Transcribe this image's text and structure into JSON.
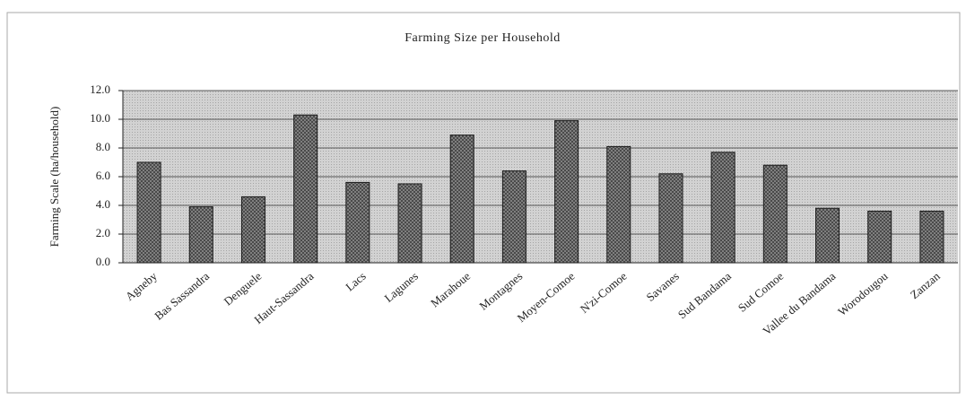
{
  "chart_data": {
    "type": "bar",
    "title": "Farming Size per Household",
    "y_axis_label": "Farming Scale (ha/household)",
    "categories": [
      "Agneby",
      "Bas Sassandra",
      "Denguele",
      "Haut-Sassandra",
      "Lacs",
      "Lagunes",
      "Marahoue",
      "Montagnes",
      "Moyen-Comoe",
      "N'zi-Comoe",
      "Savanes",
      "Sud Bandama",
      "Sud Comoe",
      "Vallee du Bandama",
      "Worodougou",
      "Zanzan"
    ],
    "values": [
      7.0,
      3.9,
      4.6,
      10.3,
      5.6,
      5.5,
      8.9,
      6.4,
      9.9,
      8.1,
      6.2,
      7.7,
      6.8,
      3.8,
      3.6,
      3.6
    ],
    "color": "#8a8a8a",
    "background_color": "#d2d2d2",
    "ylim": [
      0,
      12
    ],
    "yticks": [
      {
        "value": 0,
        "label": "0.0"
      },
      {
        "value": 2,
        "label": "2.0"
      },
      {
        "value": 4,
        "label": "4.0"
      },
      {
        "value": 6,
        "label": "6.0"
      },
      {
        "value": 8,
        "label": "8.0"
      },
      {
        "value": 10,
        "label": "10.0"
      },
      {
        "value": 12,
        "label": "12.0"
      }
    ],
    "grid": true
  }
}
